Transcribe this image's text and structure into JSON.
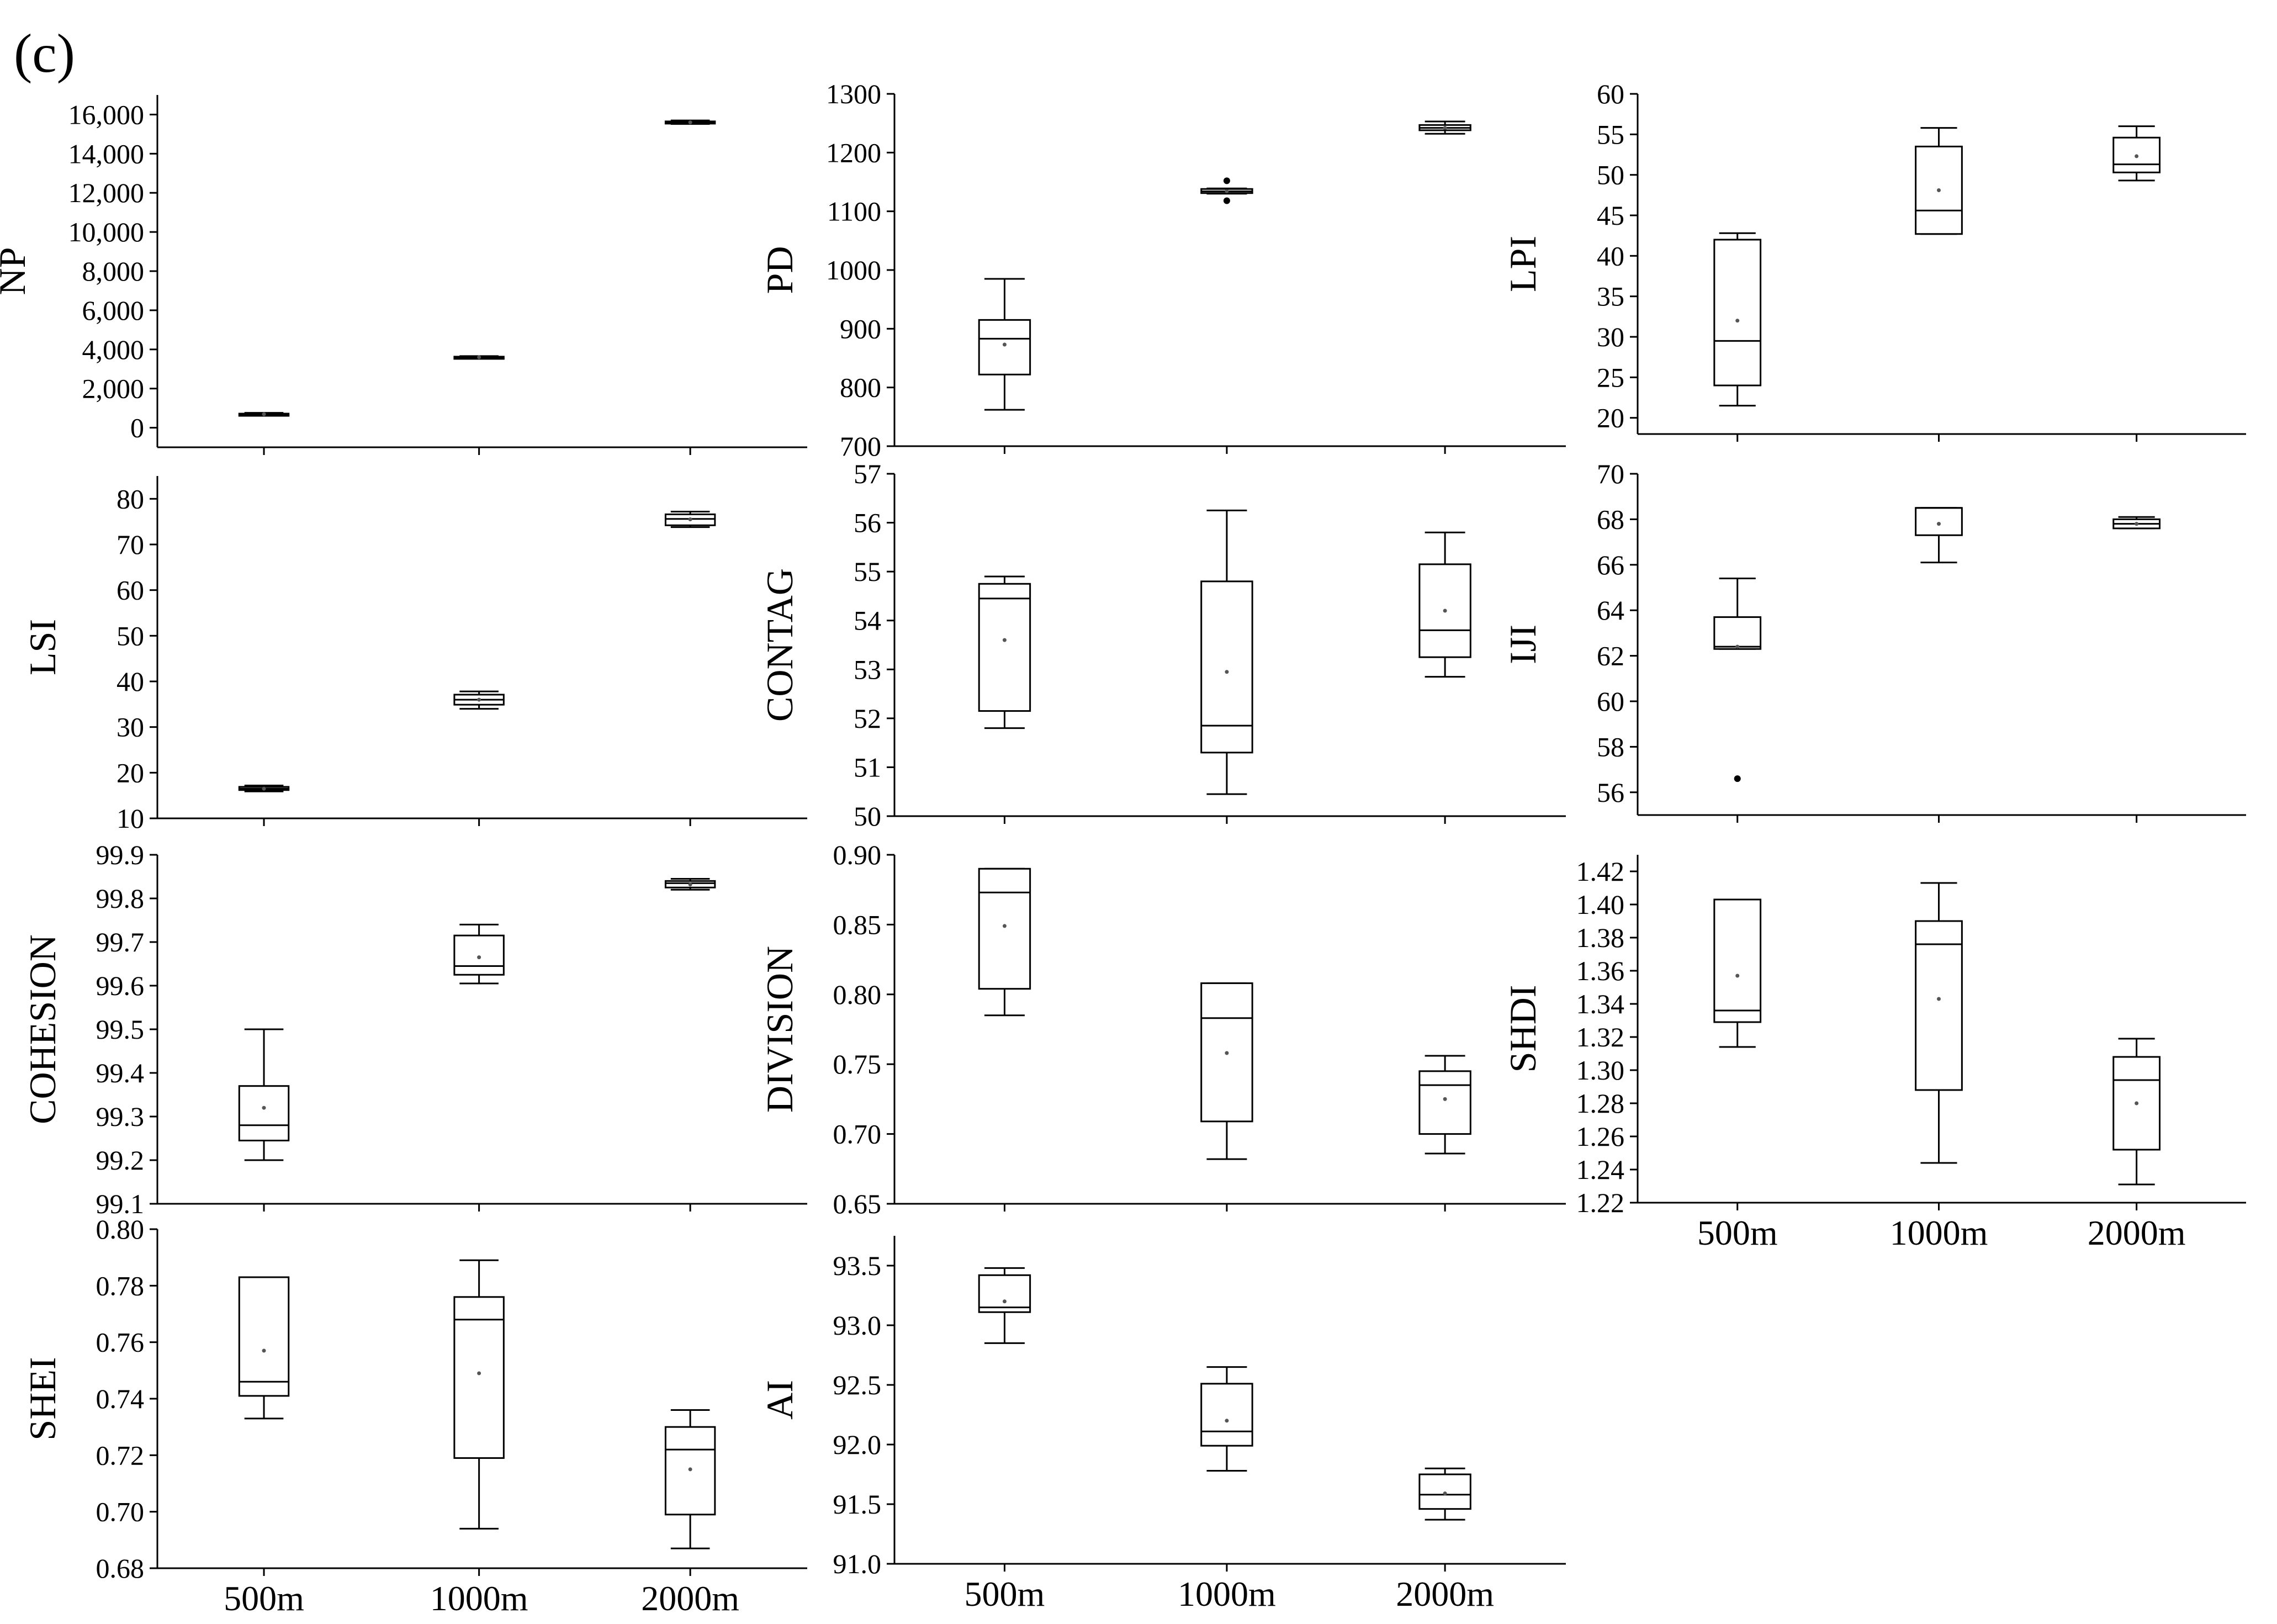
{
  "figure_label": "(c)",
  "chart_data": [
    {
      "type": "box",
      "ylabel": "NP",
      "categories": [
        "500m",
        "1000m",
        "2000m"
      ],
      "yticks": [
        "0",
        "2,000",
        "4,000",
        "6,000",
        "8,000",
        "10,000",
        "12,000",
        "14,000",
        "16,000"
      ],
      "ylim": [
        -1000,
        17000
      ],
      "boxes": [
        {
          "min": 620,
          "q1": 660,
          "median": 690,
          "q3": 720,
          "max": 760,
          "mean": 690,
          "outliers": []
        },
        {
          "min": 3540,
          "q1": 3570,
          "median": 3600,
          "q3": 3630,
          "max": 3660,
          "mean": 3600,
          "outliers": []
        },
        {
          "min": 15520,
          "q1": 15560,
          "median": 15600,
          "q3": 15650,
          "max": 15700,
          "mean": 15600,
          "outliers": []
        }
      ]
    },
    {
      "type": "box",
      "ylabel": "PD",
      "categories": [
        "500m",
        "1000m",
        "2000m"
      ],
      "yticks": [
        "700",
        "800",
        "900",
        "1000",
        "1100",
        "1200",
        "1300"
      ],
      "ylim": [
        700,
        1300
      ],
      "boxes": [
        {
          "min": 762,
          "q1": 822,
          "median": 883,
          "q3": 915,
          "max": 985,
          "mean": 873,
          "outliers": []
        },
        {
          "min": 1130,
          "q1": 1131,
          "median": 1134,
          "q3": 1138,
          "max": 1139,
          "mean": 1134,
          "outliers": [
            1118,
            1152
          ]
        },
        {
          "min": 1232,
          "q1": 1238,
          "median": 1242,
          "q3": 1247,
          "max": 1253,
          "mean": 1242,
          "outliers": []
        }
      ]
    },
    {
      "type": "box",
      "ylabel": "LPI",
      "categories": [
        "500m",
        "1000m",
        "2000m"
      ],
      "yticks": [
        "20",
        "25",
        "30",
        "35",
        "40",
        "45",
        "50",
        "55",
        "60"
      ],
      "ylim": [
        18,
        60
      ],
      "boxes": [
        {
          "min": 21.5,
          "q1": 24.0,
          "median": 29.5,
          "q3": 42.0,
          "max": 42.8,
          "mean": 32.0,
          "outliers": []
        },
        {
          "min": 42.7,
          "q1": 42.7,
          "median": 45.6,
          "q3": 53.5,
          "max": 55.8,
          "mean": 48.1,
          "outliers": []
        },
        {
          "min": 49.3,
          "q1": 50.3,
          "median": 51.3,
          "q3": 54.6,
          "max": 56.0,
          "mean": 52.3,
          "outliers": []
        }
      ]
    },
    {
      "type": "box",
      "ylabel": "LSI",
      "categories": [
        "500m",
        "1000m",
        "2000m"
      ],
      "yticks": [
        "10",
        "20",
        "30",
        "40",
        "50",
        "60",
        "70",
        "80"
      ],
      "ylim": [
        10,
        85
      ],
      "boxes": [
        {
          "min": 15.9,
          "q1": 16.2,
          "median": 16.5,
          "q3": 16.9,
          "max": 17.2,
          "mean": 16.5,
          "outliers": []
        },
        {
          "min": 34.0,
          "q1": 34.9,
          "median": 36.0,
          "q3": 37.1,
          "max": 37.8,
          "mean": 36.0,
          "outliers": []
        },
        {
          "min": 73.8,
          "q1": 74.2,
          "median": 75.6,
          "q3": 76.6,
          "max": 77.2,
          "mean": 75.5,
          "outliers": []
        }
      ]
    },
    {
      "type": "box",
      "ylabel": "CONTAG",
      "categories": [
        "500m",
        "1000m",
        "2000m"
      ],
      "yticks": [
        "50",
        "51",
        "52",
        "53",
        "54",
        "55",
        "56",
        "57"
      ],
      "ylim": [
        50,
        57
      ],
      "boxes": [
        {
          "min": 51.8,
          "q1": 52.15,
          "median": 54.45,
          "q3": 54.75,
          "max": 54.9,
          "mean": 53.6,
          "outliers": []
        },
        {
          "min": 50.45,
          "q1": 51.3,
          "median": 51.85,
          "q3": 54.8,
          "max": 56.25,
          "mean": 52.95,
          "outliers": []
        },
        {
          "min": 52.85,
          "q1": 53.25,
          "median": 53.8,
          "q3": 55.15,
          "max": 55.8,
          "mean": 54.2,
          "outliers": []
        }
      ]
    },
    {
      "type": "box",
      "ylabel": "IJI",
      "categories": [
        "500m",
        "1000m",
        "2000m"
      ],
      "yticks": [
        "56",
        "58",
        "60",
        "62",
        "64",
        "66",
        "68",
        "70"
      ],
      "ylim": [
        55,
        70
      ],
      "boxes": [
        {
          "min": 62.3,
          "q1": 62.3,
          "median": 62.4,
          "q3": 63.7,
          "max": 65.4,
          "mean": 62.4,
          "outliers": [
            56.6
          ]
        },
        {
          "min": 66.1,
          "q1": 67.3,
          "median": 68.5,
          "q3": 68.5,
          "max": 68.5,
          "mean": 67.8,
          "outliers": []
        },
        {
          "min": 67.6,
          "q1": 67.6,
          "median": 67.8,
          "q3": 68.0,
          "max": 68.1,
          "mean": 67.8,
          "outliers": []
        }
      ]
    },
    {
      "type": "box",
      "ylabel": "COHESION",
      "categories": [
        "500m",
        "1000m",
        "2000m"
      ],
      "yticks": [
        "99.1",
        "99.2",
        "99.3",
        "99.4",
        "99.5",
        "99.6",
        "99.7",
        "99.8",
        "99.9"
      ],
      "ylim": [
        99.1,
        99.9
      ],
      "boxes": [
        {
          "min": 99.2,
          "q1": 99.245,
          "median": 99.28,
          "q3": 99.37,
          "max": 99.5,
          "mean": 99.32,
          "outliers": []
        },
        {
          "min": 99.605,
          "q1": 99.625,
          "median": 99.645,
          "q3": 99.715,
          "max": 99.74,
          "mean": 99.665,
          "outliers": []
        },
        {
          "min": 99.82,
          "q1": 99.825,
          "median": 99.835,
          "q3": 99.84,
          "max": 99.845,
          "mean": 99.832,
          "outliers": []
        }
      ]
    },
    {
      "type": "box",
      "ylabel": "DIVISION",
      "categories": [
        "500m",
        "1000m",
        "2000m"
      ],
      "yticks": [
        "0.65",
        "0.70",
        "0.75",
        "0.80",
        "0.85",
        "0.90"
      ],
      "ylim": [
        0.65,
        0.9
      ],
      "boxes": [
        {
          "min": 0.785,
          "q1": 0.804,
          "median": 0.873,
          "q3": 0.89,
          "max": 0.89,
          "mean": 0.849,
          "outliers": []
        },
        {
          "min": 0.682,
          "q1": 0.709,
          "median": 0.783,
          "q3": 0.808,
          "max": 0.808,
          "mean": 0.758,
          "outliers": []
        },
        {
          "min": 0.686,
          "q1": 0.7,
          "median": 0.735,
          "q3": 0.745,
          "max": 0.756,
          "mean": 0.725,
          "outliers": []
        }
      ]
    },
    {
      "type": "box",
      "ylabel": "SHDI",
      "categories": [
        "500m",
        "1000m",
        "2000m"
      ],
      "yticks": [
        "1.22",
        "1.24",
        "1.26",
        "1.28",
        "1.30",
        "1.32",
        "1.34",
        "1.36",
        "1.38",
        "1.40",
        "1.42"
      ],
      "ylim": [
        1.22,
        1.43
      ],
      "boxes": [
        {
          "min": 1.314,
          "q1": 1.329,
          "median": 1.336,
          "q3": 1.403,
          "max": 1.403,
          "mean": 1.357,
          "outliers": []
        },
        {
          "min": 1.244,
          "q1": 1.288,
          "median": 1.376,
          "q3": 1.39,
          "max": 1.413,
          "mean": 1.343,
          "outliers": []
        },
        {
          "min": 1.231,
          "q1": 1.252,
          "median": 1.294,
          "q3": 1.308,
          "max": 1.319,
          "mean": 1.28,
          "outliers": []
        }
      ]
    },
    {
      "type": "box",
      "ylabel": "SHEI",
      "categories": [
        "500m",
        "1000m",
        "2000m"
      ],
      "yticks": [
        "0.68",
        "0.70",
        "0.72",
        "0.74",
        "0.76",
        "0.78",
        "0.80"
      ],
      "ylim": [
        0.68,
        0.8
      ],
      "boxes": [
        {
          "min": 0.733,
          "q1": 0.741,
          "median": 0.746,
          "q3": 0.783,
          "max": 0.783,
          "mean": 0.757,
          "outliers": []
        },
        {
          "min": 0.694,
          "q1": 0.719,
          "median": 0.768,
          "q3": 0.776,
          "max": 0.789,
          "mean": 0.749,
          "outliers": []
        },
        {
          "min": 0.687,
          "q1": 0.699,
          "median": 0.722,
          "q3": 0.73,
          "max": 0.736,
          "mean": 0.715,
          "outliers": []
        }
      ]
    },
    {
      "type": "box",
      "ylabel": "AI",
      "categories": [
        "500m",
        "1000m",
        "2000m"
      ],
      "yticks": [
        "91.0",
        "91.5",
        "92.0",
        "92.5",
        "93.0",
        "93.5"
      ],
      "ylim": [
        91.0,
        93.75
      ],
      "boxes": [
        {
          "min": 92.85,
          "q1": 93.11,
          "median": 93.15,
          "q3": 93.42,
          "max": 93.48,
          "mean": 93.2,
          "outliers": []
        },
        {
          "min": 91.78,
          "q1": 91.99,
          "median": 92.11,
          "q3": 92.51,
          "max": 92.65,
          "mean": 92.2,
          "outliers": []
        },
        {
          "min": 91.37,
          "q1": 91.46,
          "median": 91.58,
          "q3": 91.75,
          "max": 91.8,
          "mean": 91.59,
          "outliers": []
        }
      ]
    }
  ]
}
